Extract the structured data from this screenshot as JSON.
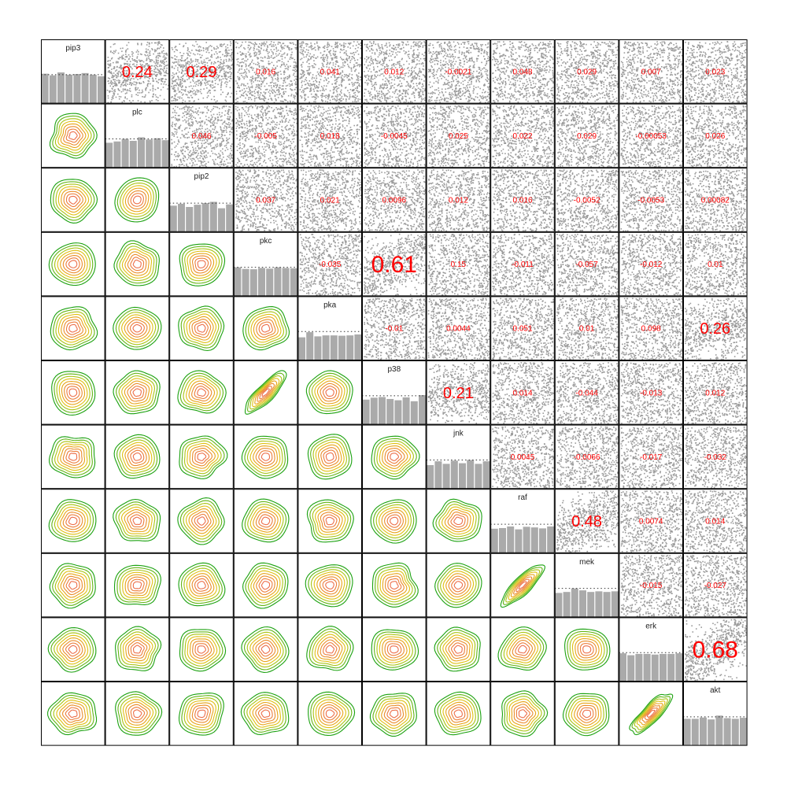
{
  "chart_data": {
    "type": "scatter-matrix",
    "variables": [
      "pip3",
      "plc",
      "pip2",
      "pkc",
      "pka",
      "p38",
      "jnk",
      "raf",
      "mek",
      "erk",
      "akt"
    ],
    "upper_panels": "scatter points with correlation coefficient text",
    "diagonal_panels": "histogram with dotted mean line",
    "lower_panels": "bivariate density contours",
    "correlations": {
      "pip3": {
        "plc": "0.24",
        "pip2": "0.29",
        "pkc": "0.016",
        "pka": "0.041",
        "p38": "0.012",
        "jnk": "-0.0021",
        "raf": "0.048",
        "mek": "0.029",
        "erk": "0.007",
        "akt": "0.023"
      },
      "plc": {
        "pip2": "0.046",
        "pkc": "-0.005",
        "pka": "0.018",
        "p38": "-0.0045",
        "jnk": "0.025",
        "raf": "0.022",
        "mek": "0.029",
        "erk": "-0.00053",
        "akt": "0.026"
      },
      "pip2": {
        "pkc": "0.037",
        "pka": "0.021",
        "p38": "0.0096",
        "jnk": "0.012",
        "raf": "0.016",
        "mek": "-0.0052",
        "erk": "-0.0053",
        "akt": "0.00082"
      },
      "pkc": {
        "pka": "-0.035",
        "p38": "0.61",
        "jnk": "0.15",
        "raf": "-0.011",
        "mek": "-0.057",
        "erk": "-0.012",
        "akt": "0.01"
      },
      "pka": {
        "p38": "-0.01",
        "jnk": "0.0044",
        "raf": "0.051",
        "mek": "0.01",
        "erk": "0.098",
        "akt": "0.26"
      },
      "p38": {
        "jnk": "0.21",
        "raf": "0.014",
        "mek": "-0.044",
        "erk": "-0.013",
        "akt": "0.012"
      },
      "jnk": {
        "raf": "0.0045",
        "mek": "-0.0066",
        "erk": "-0.017",
        "akt": "-0.032"
      },
      "raf": {
        "mek": "0.48",
        "erk": "0.0074",
        "akt": "0.014"
      },
      "mek": {
        "erk": "-0.015",
        "akt": "-0.027"
      },
      "erk": {
        "akt": "0.68"
      }
    },
    "histograms": {
      "pip3": [
        0.93,
        0.88,
        0.97,
        0.9,
        0.92,
        0.95,
        0.9,
        0.85
      ],
      "plc": [
        0.78,
        0.82,
        0.9,
        0.84,
        0.95,
        0.88,
        0.92,
        0.86
      ],
      "pip2": [
        0.82,
        0.88,
        0.78,
        0.85,
        0.9,
        0.94,
        0.74,
        0.86
      ],
      "pkc": [
        0.9,
        0.85,
        0.84,
        0.88,
        0.86,
        0.9,
        0.88,
        0.87
      ],
      "pka": [
        0.72,
        0.88,
        0.75,
        0.78,
        0.78,
        0.77,
        0.78,
        0.81
      ],
      "p38": [
        0.78,
        0.84,
        0.86,
        0.8,
        0.76,
        0.85,
        0.73,
        0.92
      ],
      "jnk": [
        0.74,
        0.86,
        0.78,
        0.88,
        0.8,
        0.9,
        0.78,
        0.86
      ],
      "raf": [
        0.76,
        0.78,
        0.83,
        0.74,
        0.82,
        0.8,
        0.77,
        0.83
      ],
      "mek": [
        0.76,
        0.79,
        0.9,
        0.84,
        0.79,
        0.81,
        0.79,
        0.81
      ],
      "erk": [
        0.88,
        0.82,
        0.86,
        0.86,
        0.84,
        0.86,
        0.86,
        0.88
      ],
      "akt": [
        0.84,
        0.84,
        0.88,
        0.82,
        0.94,
        0.86,
        0.84,
        0.87
      ]
    },
    "colors": {
      "points": "#9a9a9a",
      "bars": "#aaaaaa",
      "correlation_text": "#ff0000",
      "contours": [
        "#1aa10f",
        "#62b514",
        "#a9c413",
        "#e0c012",
        "#e8a418",
        "#ea8c2a",
        "#ec7c3a",
        "#ec6e4a"
      ]
    }
  }
}
